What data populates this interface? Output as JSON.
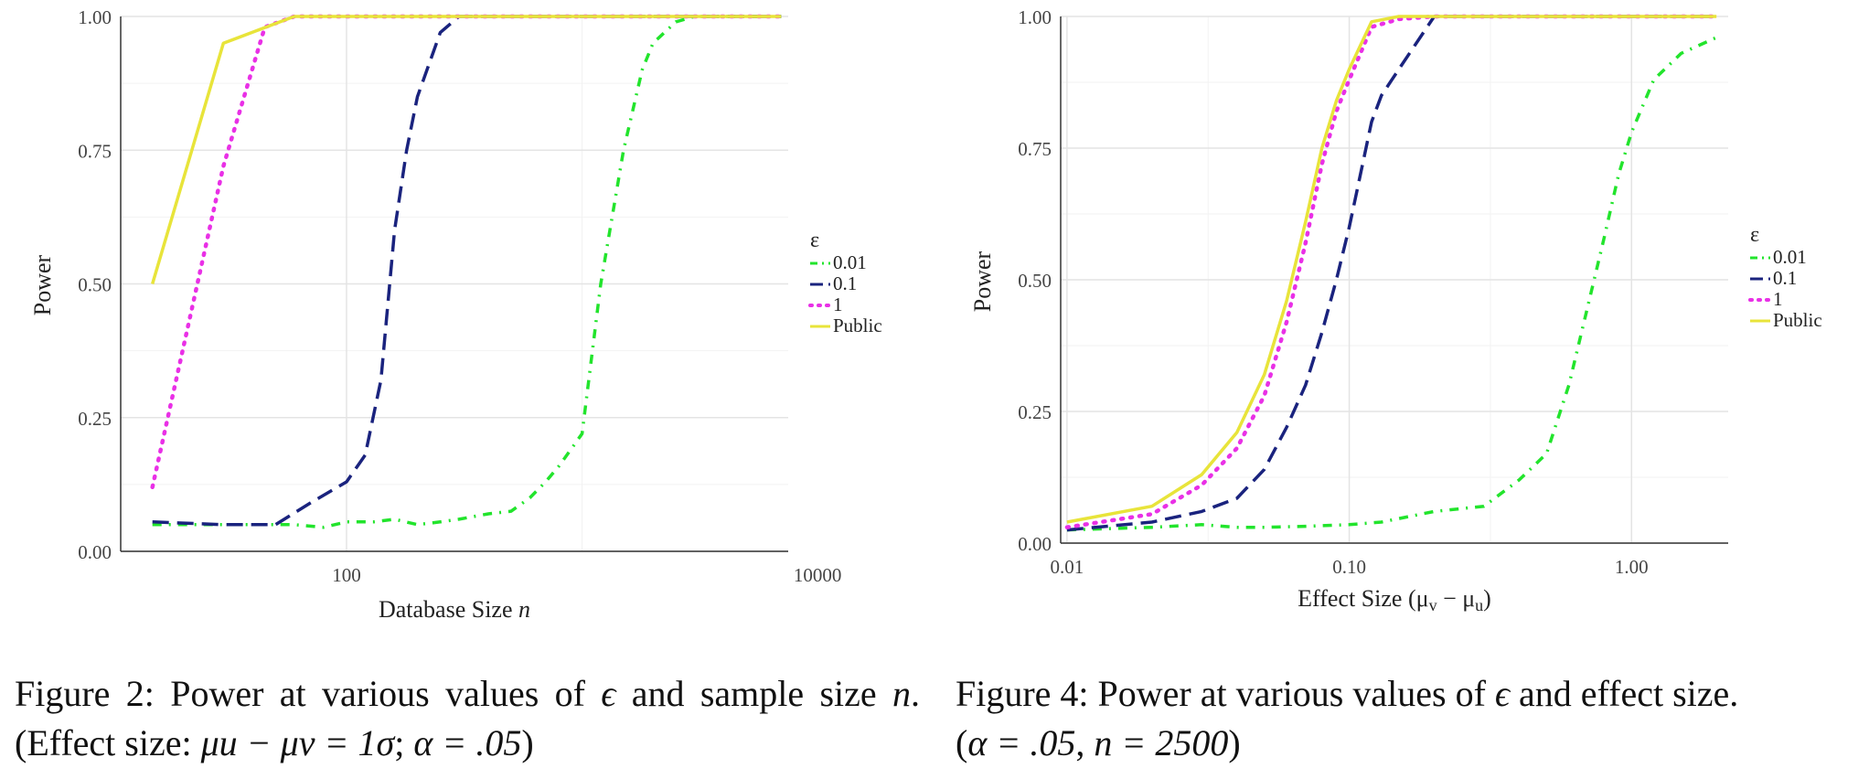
{
  "chart_data": [
    {
      "type": "line",
      "title": "",
      "xlabel": "Database Size n",
      "xlabel_main": "Database Size ",
      "xlabel_var": "n",
      "ylabel": "Power",
      "x_scale": "log",
      "xlim": [
        11,
        7500
      ],
      "ylim": [
        0,
        1
      ],
      "x_ticks": [
        100,
        10000
      ],
      "x_tick_labels": [
        "100",
        "10000"
      ],
      "y_ticks": [
        0,
        0.25,
        0.5,
        0.75,
        1
      ],
      "y_tick_labels": [
        "0.00",
        "0.25",
        "0.50",
        "0.75",
        "1.00"
      ],
      "grid": true,
      "legend_title": "ε",
      "legend_position": "right",
      "series": [
        {
          "name": "0.01",
          "color": "#22e42c",
          "dash": "dashdot",
          "x": [
            15,
            30,
            45,
            60,
            80,
            100,
            130,
            160,
            200,
            250,
            300,
            400,
            500,
            600,
            700,
            800,
            1000,
            1200,
            1500,
            1800,
            2000,
            2500,
            3000,
            4000,
            5000,
            7000
          ],
          "y": [
            0.05,
            0.05,
            0.05,
            0.05,
            0.045,
            0.055,
            0.055,
            0.06,
            0.05,
            0.055,
            0.06,
            0.07,
            0.075,
            0.1,
            0.13,
            0.16,
            0.22,
            0.5,
            0.75,
            0.9,
            0.95,
            0.99,
            1.0,
            1.0,
            1.0,
            1.0
          ]
        },
        {
          "name": "0.1",
          "color": "#1a237e",
          "dash": "dashed",
          "x": [
            15,
            30,
            50,
            70,
            100,
            120,
            140,
            160,
            180,
            200,
            250,
            300,
            400,
            500,
            700,
            1000,
            2000,
            7000
          ],
          "y": [
            0.055,
            0.05,
            0.05,
            0.09,
            0.13,
            0.18,
            0.32,
            0.6,
            0.75,
            0.85,
            0.97,
            1.0,
            1.0,
            1.0,
            1.0,
            1.0,
            1.0,
            1.0
          ]
        },
        {
          "name": "1",
          "color": "#e930e6",
          "dash": "dotted",
          "x": [
            15,
            30,
            45,
            60,
            80,
            100,
            200,
            500,
            1000,
            7000
          ],
          "y": [
            0.12,
            0.72,
            0.98,
            1.0,
            1.0,
            1.0,
            1.0,
            1.0,
            1.0,
            1.0
          ]
        },
        {
          "name": "Public",
          "color": "#e8e43a",
          "dash": "solid",
          "x": [
            15,
            30,
            60,
            100,
            500,
            7000
          ],
          "y": [
            0.5,
            0.95,
            1.0,
            1.0,
            1.0,
            1.0
          ]
        }
      ]
    },
    {
      "type": "line",
      "title": "",
      "xlabel": "Effect Size (μv − μu)",
      "xlabel_main": "Effect Size (μ",
      "xlabel_sub1": "v",
      "xlabel_mid": " − μ",
      "xlabel_sub2": "u",
      "xlabel_end": ")",
      "ylabel": "Power",
      "x_scale": "log",
      "xlim": [
        0.0095,
        2.2
      ],
      "ylim": [
        0,
        1
      ],
      "x_ticks": [
        0.01,
        0.1,
        1
      ],
      "x_tick_labels": [
        "0.01",
        "0.10",
        "1.00"
      ],
      "y_ticks": [
        0,
        0.25,
        0.5,
        0.75,
        1
      ],
      "y_tick_labels": [
        "0.00",
        "0.25",
        "0.50",
        "0.75",
        "1.00"
      ],
      "grid": true,
      "legend_title": "ε",
      "legend_position": "right",
      "series": [
        {
          "name": "0.01",
          "color": "#22e42c",
          "dash": "dashdot",
          "x": [
            0.01,
            0.02,
            0.03,
            0.04,
            0.05,
            0.07,
            0.1,
            0.13,
            0.2,
            0.3,
            0.4,
            0.5,
            0.6,
            0.7,
            0.8,
            0.9,
            1.0,
            1.2,
            1.5,
            2.0
          ],
          "y": [
            0.025,
            0.03,
            0.035,
            0.03,
            0.03,
            0.032,
            0.035,
            0.04,
            0.06,
            0.07,
            0.12,
            0.17,
            0.3,
            0.45,
            0.58,
            0.7,
            0.78,
            0.88,
            0.93,
            0.96
          ]
        },
        {
          "name": "0.1",
          "color": "#1a237e",
          "dash": "dashed",
          "x": [
            0.01,
            0.02,
            0.03,
            0.04,
            0.05,
            0.06,
            0.07,
            0.08,
            0.09,
            0.1,
            0.12,
            0.13,
            0.15,
            0.2,
            0.3,
            0.5,
            1.0,
            2.0
          ],
          "y": [
            0.025,
            0.04,
            0.06,
            0.085,
            0.14,
            0.22,
            0.3,
            0.4,
            0.5,
            0.6,
            0.8,
            0.85,
            0.9,
            1.0,
            1.0,
            1.0,
            1.0,
            1.0
          ]
        },
        {
          "name": "1",
          "color": "#e930e6",
          "dash": "dotted",
          "x": [
            0.01,
            0.02,
            0.03,
            0.04,
            0.05,
            0.06,
            0.07,
            0.08,
            0.09,
            0.1,
            0.12,
            0.15,
            0.2,
            0.5,
            1.0,
            2.0
          ],
          "y": [
            0.03,
            0.055,
            0.11,
            0.18,
            0.28,
            0.42,
            0.57,
            0.72,
            0.82,
            0.88,
            0.98,
            0.995,
            1.0,
            1.0,
            1.0,
            1.0
          ]
        },
        {
          "name": "Public",
          "color": "#e8e43a",
          "dash": "solid",
          "x": [
            0.01,
            0.02,
            0.03,
            0.04,
            0.05,
            0.06,
            0.07,
            0.08,
            0.09,
            0.1,
            0.12,
            0.15,
            0.2,
            0.5,
            1.0,
            2.0
          ],
          "y": [
            0.04,
            0.07,
            0.13,
            0.21,
            0.32,
            0.46,
            0.61,
            0.75,
            0.84,
            0.9,
            0.99,
            1.0,
            1.0,
            1.0,
            1.0,
            1.0
          ]
        }
      ]
    }
  ],
  "captions": {
    "left": {
      "p1": "Figure 2:  Power at various values of ",
      "eps": "ϵ",
      "p2": " and sample size ",
      "n": "n",
      "p3": ".  (Effect size: ",
      "math": "μu − μv = 1σ",
      "p4": "; ",
      "alpha": "α = .05",
      "p5": ")"
    },
    "right": {
      "p1": "Figure 4: Power at various values of ",
      "eps": "ϵ",
      "p2": " and effect size.",
      "p3": "(",
      "alpha": "α = .05",
      "p4": ", ",
      "n": "n = 2500",
      "p5": ")"
    }
  }
}
